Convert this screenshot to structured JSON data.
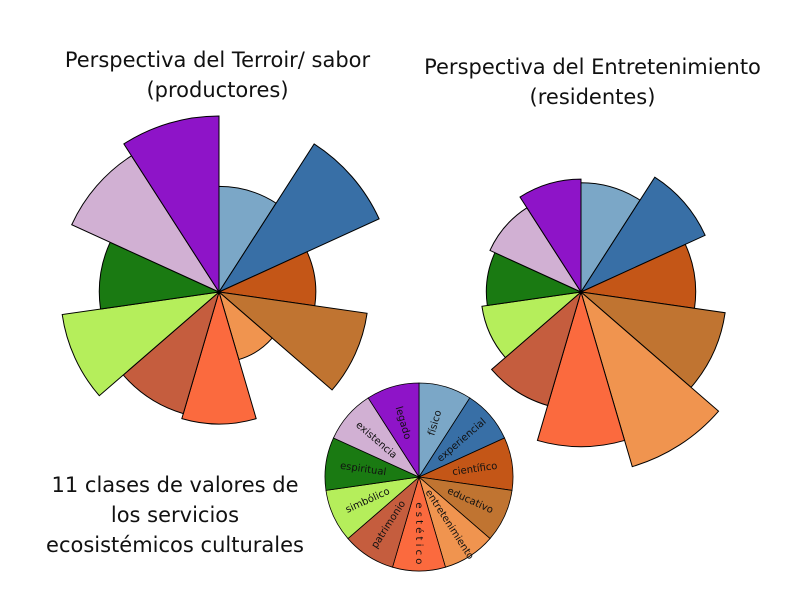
{
  "colors": [
    "#7ba7c7",
    "#386fa6",
    "#c45617",
    "#c07431",
    "#f0944f",
    "#fb6a3e",
    "#c55d3e",
    "#b5ee5b",
    "#1a7a12",
    "#d1b0d3",
    "#8e14c8"
  ],
  "legend_title": [
    "11 clases de valores de",
    "los servicios",
    "ecosistémicos culturales"
  ],
  "chart_data": [
    {
      "type": "polar-area",
      "title": [
        "Perspectiva del Terroir/ sabor",
        "(productores)"
      ],
      "categories": [
        "físico",
        "experiencial",
        "científico",
        "educativo",
        "entretenimiento",
        "estético",
        "patrimonio",
        "simbólico",
        "espiritual",
        "existencia",
        "legado"
      ],
      "values": [
        0.6,
        1.0,
        0.55,
        0.85,
        0.4,
        0.75,
        0.72,
        0.9,
        0.68,
        0.92,
        1.0
      ]
    },
    {
      "type": "polar-area",
      "title": [
        "Perspectiva del Entretenimiento",
        "(residentes)"
      ],
      "categories": [
        "físico",
        "experiencial",
        "científico",
        "educativo",
        "entretenimiento",
        "estético",
        "patrimonio",
        "simbólico",
        "espiritual",
        "existencia",
        "legado"
      ],
      "values": [
        0.6,
        0.75,
        0.63,
        0.8,
        1.0,
        0.85,
        0.65,
        0.55,
        0.52,
        0.55,
        0.62
      ]
    },
    {
      "type": "pie",
      "title": "",
      "categories": [
        "físico",
        "experiencial",
        "científico",
        "educativo",
        "entretenimiento",
        "estético",
        "patrimonio",
        "simbólico",
        "espiritual",
        "existencia",
        "legado"
      ],
      "labels": [
        "físico",
        "experiencial",
        "científico",
        "educativo",
        "entretenimiento",
        "e s t é t i c o",
        "patrimonio",
        "simbólico",
        "espiritual",
        "existencia",
        "legado"
      ],
      "values": [
        1,
        1,
        1,
        1,
        1,
        1,
        1,
        1,
        1,
        1,
        1
      ]
    }
  ]
}
